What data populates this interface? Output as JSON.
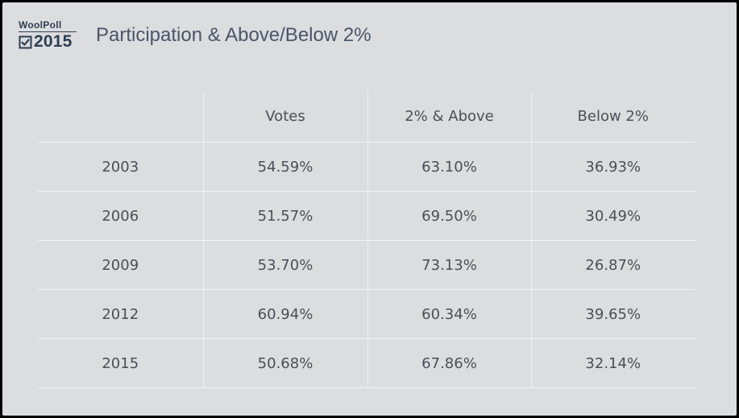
{
  "logo": {
    "brand": "WoolPoll",
    "year": "2015",
    "icon": "checkbox-checked-icon"
  },
  "title": "Participation & Above/Below 2%",
  "table": {
    "headers": [
      "",
      "Votes",
      "2% & Above",
      "Below 2%"
    ],
    "rows": [
      [
        "2003",
        "54.59%",
        "63.10%",
        "36.93%"
      ],
      [
        "2006",
        "51.57%",
        "69.50%",
        "30.49%"
      ],
      [
        "2009",
        "53.70%",
        "73.13%",
        "26.87%"
      ],
      [
        "2012",
        "60.94%",
        "60.34%",
        "39.65%"
      ],
      [
        "2015",
        "50.68%",
        "67.86%",
        "32.14%"
      ]
    ]
  },
  "colors": {
    "background": "#dcdddf",
    "brand": "#2d3e52",
    "text": "#4a4f57"
  }
}
